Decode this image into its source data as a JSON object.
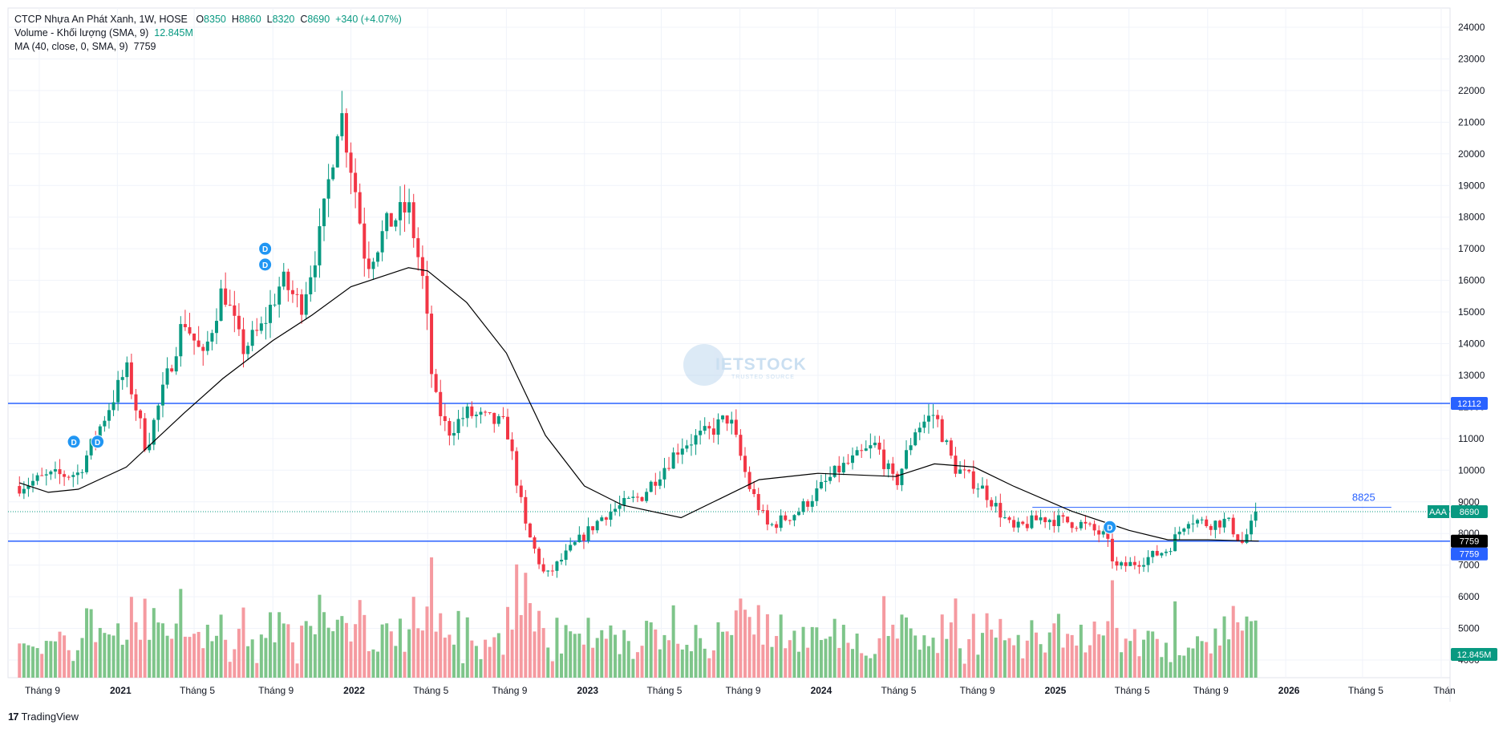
{
  "legend": {
    "symbol": "CTCP Nhựa An Phát Xanh, 1W, HOSE",
    "open_label": "O",
    "open": "8350",
    "high_label": "H",
    "high": "8860",
    "low_label": "L",
    "low": "8320",
    "close_label": "C",
    "close": "8690",
    "change": "+340 (+4.07%)",
    "volume_label": "Volume - Khối lượng (SMA, 9)",
    "volume_value": "12.845M",
    "ma_label": "MA (40, close, 0, SMA, 9)",
    "ma_value": "7759"
  },
  "footer": {
    "logo_glyph": "17",
    "brand": "TradingView"
  },
  "watermark": {
    "text": "IETSTOCK",
    "sub": "TRUSTED SOURCE"
  },
  "colors": {
    "up": "#089981",
    "down": "#F23645",
    "vol_up": "#7EC58A",
    "vol_down": "#F59AA0",
    "level": "#2962FF",
    "ma": "#000000",
    "grid": "#F0F3FA"
  },
  "chart_data": {
    "type": "candlestick",
    "title": "",
    "y_axis": {
      "ticks": [
        24000,
        23000,
        22000,
        21000,
        20000,
        19000,
        18000,
        17000,
        16000,
        15000,
        14000,
        13000,
        12000,
        11000,
        10000,
        9000,
        8000,
        7000,
        6000,
        5000,
        4000
      ]
    },
    "x_axis": {
      "ticks": [
        "Tháng 9",
        "2021",
        "Tháng 5",
        "Tháng 9",
        "2022",
        "Tháng 5",
        "Tháng 9",
        "2023",
        "Tháng 5",
        "Tháng 9",
        "2024",
        "Tháng 5",
        "Tháng 9",
        "2025",
        "Tháng 5",
        "Tháng 9",
        "2026",
        "Tháng 5",
        "Thán"
      ],
      "tick_dates": [
        "2020-09-01",
        "2021-01-01",
        "2021-05-01",
        "2021-09-01",
        "2022-01-01",
        "2022-05-01",
        "2022-09-01",
        "2023-01-01",
        "2023-05-01",
        "2023-09-01",
        "2024-01-01",
        "2024-05-01",
        "2024-09-01",
        "2025-01-01",
        "2025-05-01",
        "2025-09-01",
        "2026-01-01",
        "2026-05-01",
        "2026-09-01"
      ]
    },
    "key_points": [
      {
        "date": "2020-08-01",
        "close": 9500
      },
      {
        "date": "2020-09-15",
        "close": 9800
      },
      {
        "date": "2020-11-01",
        "close": 9900
      },
      {
        "date": "2020-12-01",
        "close": 11200
      },
      {
        "date": "2021-01-15",
        "close": 13200
      },
      {
        "date": "2021-02-15",
        "close": 10700
      },
      {
        "date": "2021-03-15",
        "close": 12600
      },
      {
        "date": "2021-04-15",
        "close": 14800
      },
      {
        "date": "2021-05-15",
        "close": 13500
      },
      {
        "date": "2021-06-15",
        "close": 15800
      },
      {
        "date": "2021-07-15",
        "close": 13800
      },
      {
        "date": "2021-08-15",
        "close": 14500
      },
      {
        "date": "2021-09-15",
        "close": 16000
      },
      {
        "date": "2021-10-15",
        "close": 15200
      },
      {
        "date": "2021-11-15",
        "close": 17500
      },
      {
        "date": "2021-12-15",
        "close": 21500
      },
      {
        "date": "2022-01-07",
        "close": 19000
      },
      {
        "date": "2022-01-25",
        "close": 16500
      },
      {
        "date": "2022-03-01",
        "close": 17800
      },
      {
        "date": "2022-04-01",
        "close": 18300
      },
      {
        "date": "2022-04-25",
        "close": 15800
      },
      {
        "date": "2022-05-10",
        "close": 12400
      },
      {
        "date": "2022-06-01",
        "close": 11200
      },
      {
        "date": "2022-07-01",
        "close": 11800
      },
      {
        "date": "2022-08-01",
        "close": 11600
      },
      {
        "date": "2022-09-01",
        "close": 11400
      },
      {
        "date": "2022-10-01",
        "close": 8200
      },
      {
        "date": "2022-11-01",
        "close": 6600
      },
      {
        "date": "2022-12-15",
        "close": 7600
      },
      {
        "date": "2023-02-01",
        "close": 8600
      },
      {
        "date": "2023-04-01",
        "close": 9200
      },
      {
        "date": "2023-06-01",
        "close": 10800
      },
      {
        "date": "2023-07-15",
        "close": 11200
      },
      {
        "date": "2023-08-15",
        "close": 11700
      },
      {
        "date": "2023-09-15",
        "close": 9500
      },
      {
        "date": "2023-10-15",
        "close": 8200
      },
      {
        "date": "2023-12-01",
        "close": 8700
      },
      {
        "date": "2024-02-01",
        "close": 10000
      },
      {
        "date": "2024-04-01",
        "close": 10800
      },
      {
        "date": "2024-05-01",
        "close": 9500
      },
      {
        "date": "2024-06-01",
        "close": 11300
      },
      {
        "date": "2024-07-01",
        "close": 11800
      },
      {
        "date": "2024-08-01",
        "close": 10100
      },
      {
        "date": "2024-09-15",
        "close": 9400
      },
      {
        "date": "2024-11-01",
        "close": 8100
      },
      {
        "date": "2024-12-15",
        "close": 8500
      },
      {
        "date": "2025-02-15",
        "close": 8300
      },
      {
        "date": "2025-03-25",
        "close": 7900
      },
      {
        "date": "2025-04-10",
        "close": 6900
      },
      {
        "date": "2025-05-15",
        "close": 7100
      },
      {
        "date": "2025-07-01",
        "close": 7500
      },
      {
        "date": "2025-08-01",
        "close": 8500
      },
      {
        "date": "2025-09-01",
        "close": 8300
      },
      {
        "date": "2025-10-01",
        "close": 8400
      },
      {
        "date": "2025-10-25",
        "close": 7700
      },
      {
        "date": "2025-11-20",
        "close": 8690
      }
    ],
    "ma_series": {
      "name": "MA (40, close, 0, SMA, 9)",
      "points": [
        {
          "date": "2020-08-01",
          "value": 9600
        },
        {
          "date": "2020-09-15",
          "value": 9300
        },
        {
          "date": "2020-11-01",
          "value": 9400
        },
        {
          "date": "2021-01-15",
          "value": 10100
        },
        {
          "date": "2021-04-15",
          "value": 11800
        },
        {
          "date": "2021-06-15",
          "value": 12900
        },
        {
          "date": "2021-09-01",
          "value": 14100
        },
        {
          "date": "2021-11-01",
          "value": 14900
        },
        {
          "date": "2022-01-01",
          "value": 15800
        },
        {
          "date": "2022-04-01",
          "value": 16400
        },
        {
          "date": "2022-05-01",
          "value": 16300
        },
        {
          "date": "2022-07-01",
          "value": 15300
        },
        {
          "date": "2022-09-01",
          "value": 13700
        },
        {
          "date": "2022-11-01",
          "value": 11100
        },
        {
          "date": "2023-01-01",
          "value": 9500
        },
        {
          "date": "2023-03-01",
          "value": 8900
        },
        {
          "date": "2023-06-01",
          "value": 8500
        },
        {
          "date": "2023-08-01",
          "value": 9100
        },
        {
          "date": "2023-10-01",
          "value": 9700
        },
        {
          "date": "2024-01-01",
          "value": 9900
        },
        {
          "date": "2024-05-01",
          "value": 9800
        },
        {
          "date": "2024-07-01",
          "value": 10200
        },
        {
          "date": "2024-09-01",
          "value": 10100
        },
        {
          "date": "2024-11-01",
          "value": 9500
        },
        {
          "date": "2025-02-01",
          "value": 8700
        },
        {
          "date": "2025-05-01",
          "value": 8100
        },
        {
          "date": "2025-07-01",
          "value": 7800
        },
        {
          "date": "2025-09-01",
          "value": 7800
        },
        {
          "date": "2025-11-20",
          "value": 7759
        }
      ]
    },
    "volume_series": {
      "name": "Volume - Khối lượng (SMA, 9)",
      "last": "12.845M"
    },
    "horizontal_levels": [
      {
        "value": 12112,
        "label": "12112"
      },
      {
        "value": 7759,
        "label": "7759"
      }
    ],
    "ray_level": {
      "value": 8825,
      "label": "8825",
      "from": "2024-12-01",
      "to": "2026-06-15"
    },
    "last_price": {
      "value": 8690,
      "ticker": "AAA",
      "label": "8690"
    },
    "ma_label_value": "7759",
    "volume_label": "12.845M",
    "dividend_markers": [
      {
        "date": "2020-10-25",
        "value": 10900,
        "label": "D"
      },
      {
        "date": "2020-12-01",
        "value": 10900,
        "label": "D"
      },
      {
        "date": "2021-08-20",
        "value": 17000,
        "label": "D"
      },
      {
        "date": "2021-08-20",
        "value": 16500,
        "label": "D"
      },
      {
        "date": "2025-04-01",
        "value": 8200,
        "label": "D"
      }
    ]
  }
}
